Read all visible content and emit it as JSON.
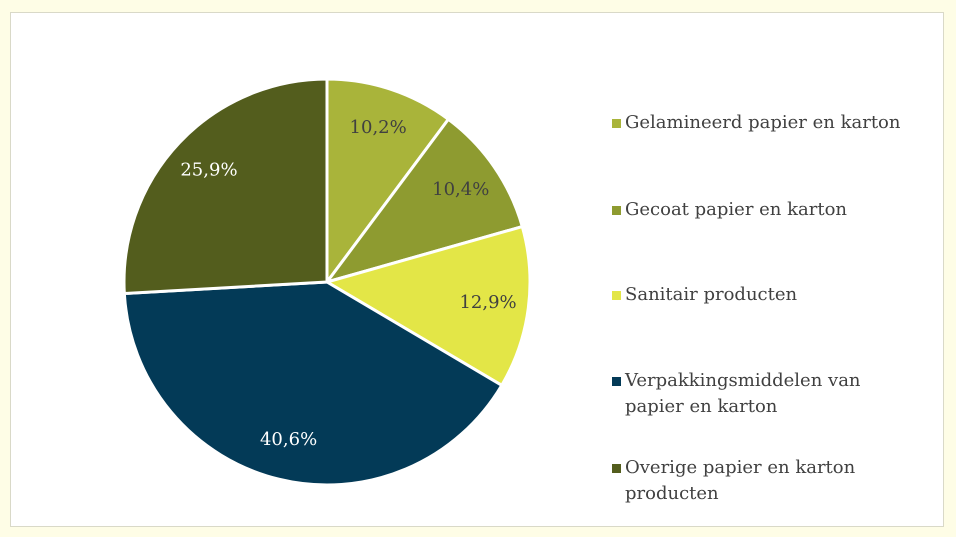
{
  "chart_data": {
    "type": "pie",
    "categories": [
      "Gelamineerd papier en karton",
      "Gecoat papier en karton",
      "Sanitair producten",
      "Verpakkingsmiddelen van papier en karton",
      "Overige papier en karton producten"
    ],
    "values": [
      10.2,
      10.4,
      12.9,
      40.6,
      25.9
    ],
    "value_labels": [
      "10,2%",
      "10,4%",
      "12,9%",
      "40,6%",
      "25,9%"
    ],
    "colors": [
      "#a9b43a",
      "#8e9b30",
      "#e3e647",
      "#033a57",
      "#535d1d"
    ],
    "legend": "right"
  }
}
